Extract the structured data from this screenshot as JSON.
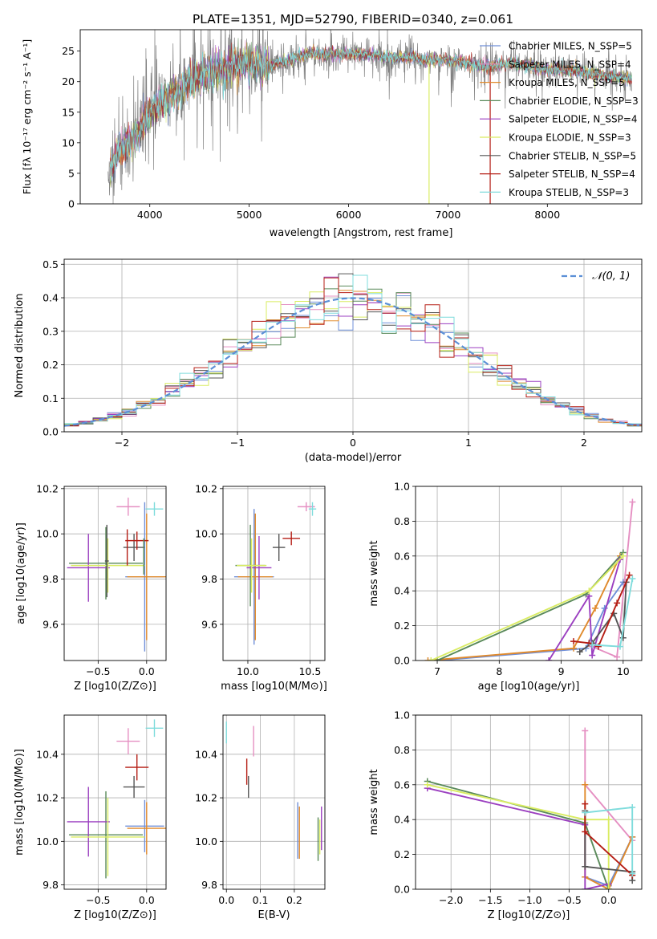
{
  "figure_title": "PLATE=1351, MJD=52790, FIBERID=0340, z=0.061",
  "colors": {
    "Chabrier MILES": "#6f8fd8",
    "Salpeter MILES": "#e58fc2",
    "Kroupa MILES": "#e08a2c",
    "Chabrier ELODIE": "#5a8a5a",
    "Salpeter ELODIE": "#9b3fc0",
    "Kroupa ELODIE": "#d9ec62",
    "Chabrier STELIB": "#555555",
    "Salpeter STELIB": "#b51d14",
    "Kroupa STELIB": "#7fdcdc",
    "data": "#808080",
    "normal": "#5b8fd6",
    "grid": "#b0b0b0"
  },
  "chart_data": [
    {
      "id": "spectrum",
      "type": "line",
      "title": "PLATE=1351, MJD=52790, FIBERID=0340, z=0.061",
      "xlabel": "wavelength [Angstrom, rest frame]",
      "ylabel": "Flux [fλ 10⁻¹⁷ erg cm⁻² s⁻¹ A⁻¹]",
      "xlim": [
        3300,
        8950
      ],
      "ylim": [
        0,
        28.5
      ],
      "xticks": [
        4000,
        5000,
        6000,
        7000,
        8000
      ],
      "yticks": [
        0,
        5,
        10,
        15,
        20,
        25
      ],
      "grid": false,
      "legend_position": "top-right",
      "legend": [
        "Chabrier MILES, N_SSP=5",
        "Salpeter MILES, N_SSP=4",
        "Kroupa MILES, N_SSP=5",
        "Chabrier ELODIE, N_SSP=3",
        "Salpeter ELODIE, N_SSP=4",
        "Kroupa ELODIE, N_SSP=3",
        "Chabrier STELIB, N_SSP=5",
        "Salpeter STELIB, N_SSP=4",
        "Kroupa STELIB, N_SSP=3"
      ],
      "continuum": {
        "x": [
          3600,
          3650,
          3700,
          3750,
          3800,
          3850,
          3900,
          3950,
          4000,
          4100,
          4200,
          4300,
          4400,
          4500,
          4600,
          4700,
          4800,
          4900,
          5000,
          5100,
          5200,
          5300,
          5400,
          5500,
          5600,
          5700,
          5800,
          5900,
          6000,
          6200,
          6400,
          6600,
          6800,
          7000,
          7200,
          7400,
          7600,
          7800,
          8000,
          8200,
          8400,
          8600,
          8800
        ],
        "y": [
          6,
          7.5,
          9,
          9.5,
          10,
          11,
          12,
          13.5,
          15,
          16.5,
          17.5,
          18.5,
          20,
          21,
          21.5,
          22,
          22.5,
          23,
          23,
          23,
          22.5,
          23,
          23.5,
          24,
          24.5,
          24.5,
          24.5,
          24.5,
          24.5,
          24.5,
          24,
          24,
          23.5,
          23.5,
          23,
          22.5,
          23,
          22.5,
          22,
          22,
          21.5,
          21,
          20.5
        ]
      },
      "dips": [
        {
          "x": 6810,
          "y": 0
        },
        {
          "x": 7425,
          "y": 0
        }
      ]
    },
    {
      "id": "residuals",
      "type": "histogram",
      "xlabel": "(data-model)/error",
      "ylabel": "Normed distribution",
      "xlim": [
        -2.5,
        2.5
      ],
      "ylim": [
        0,
        0.515
      ],
      "xticks": [
        -2,
        -1,
        0,
        1,
        2
      ],
      "yticks": [
        0.0,
        0.1,
        0.2,
        0.3,
        0.4,
        0.5
      ],
      "grid": true,
      "legend_position": "top-right",
      "legend": [
        "N(0,1)"
      ],
      "bin_width": 0.125
    },
    {
      "id": "age_vs_Z",
      "type": "scatter",
      "xlabel": "Z [log10(Z/Z⊙)]",
      "ylabel": "age [log10(age/yr)]",
      "xlim": [
        -0.85,
        0.2
      ],
      "ylim": [
        9.44,
        10.21
      ],
      "xticks": [
        -0.5,
        0.0
      ],
      "yticks": [
        9.6,
        9.8,
        10.0,
        10.2
      ],
      "grid": true,
      "points": [
        {
          "s": "Chabrier MILES",
          "x": -0.02,
          "xerr": 0.2,
          "y": 9.81,
          "yerr": 0.33
        },
        {
          "s": "Salpeter MILES",
          "x": -0.19,
          "xerr": 0.12,
          "y": 10.12,
          "yerr": 0.04
        },
        {
          "s": "Kroupa MILES",
          "x": 0.0,
          "xerr": 0.2,
          "y": 9.81,
          "yerr": 0.28
        },
        {
          "s": "Chabrier ELODIE",
          "x": -0.42,
          "xerr": 0.38,
          "y": 9.87,
          "yerr": 0.16
        },
        {
          "s": "Salpeter ELODIE",
          "x": -0.6,
          "xerr": 0.22,
          "y": 9.85,
          "yerr": 0.15
        },
        {
          "s": "Kroupa ELODIE",
          "x": -0.4,
          "xerr": 0.38,
          "y": 9.86,
          "yerr": 0.12
        },
        {
          "s": "Chabrier STELIB",
          "x": -0.13,
          "xerr": 0.11,
          "y": 9.94,
          "yerr": 0.06
        },
        {
          "s": "Salpeter STELIB",
          "x": -0.1,
          "xerr": 0.12,
          "y": 9.97,
          "yerr": 0.04
        },
        {
          "s": "Kroupa STELIB",
          "x": 0.08,
          "xerr": 0.09,
          "y": 10.11,
          "yerr": 0.03
        },
        {
          "s": "Chabrier STELIB",
          "x": -0.41,
          "xerr": 0.02,
          "y": 9.88,
          "yerr": 0.16
        },
        {
          "s": "Salpeter STELIB",
          "x": -0.2,
          "xerr": 0.0,
          "y": 9.94,
          "yerr": 0.08
        },
        {
          "s": "Chabrier ELODIE",
          "x": -0.03,
          "xerr": 0.0,
          "y": 9.9,
          "yerr": 0.08
        }
      ]
    },
    {
      "id": "age_vs_mass",
      "type": "scatter",
      "xlabel": "mass [log10(M/M⊙)]",
      "ylabel": "",
      "xlim": [
        9.8,
        10.62
      ],
      "ylim": [
        9.44,
        10.21
      ],
      "xticks": [
        10.0,
        10.5
      ],
      "yticks": [
        9.6,
        9.8,
        10.0,
        10.2
      ],
      "grid": true,
      "points": [
        {
          "s": "Chabrier MILES",
          "x": 10.05,
          "xerr": 0.16,
          "y": 9.81,
          "yerr": 0.3
        },
        {
          "s": "Salpeter MILES",
          "x": 10.47,
          "xerr": 0.07,
          "y": 10.12,
          "yerr": 0.02
        },
        {
          "s": "Kroupa MILES",
          "x": 10.06,
          "xerr": 0.14,
          "y": 9.81,
          "yerr": 0.28
        },
        {
          "s": "Chabrier ELODIE",
          "x": 10.02,
          "xerr": 0.12,
          "y": 9.86,
          "yerr": 0.18
        },
        {
          "s": "Salpeter ELODIE",
          "x": 10.09,
          "xerr": 0.1,
          "y": 9.85,
          "yerr": 0.14
        },
        {
          "s": "Kroupa ELODIE",
          "x": 10.03,
          "xerr": 0.12,
          "y": 9.86,
          "yerr": 0.12
        },
        {
          "s": "Chabrier STELIB",
          "x": 10.25,
          "xerr": 0.05,
          "y": 9.94,
          "yerr": 0.06
        },
        {
          "s": "Salpeter STELIB",
          "x": 10.35,
          "xerr": 0.07,
          "y": 9.98,
          "yerr": 0.03
        },
        {
          "s": "Kroupa STELIB",
          "x": 10.52,
          "xerr": 0.03,
          "y": 10.11,
          "yerr": 0.03
        }
      ]
    },
    {
      "id": "weight_vs_age",
      "type": "line",
      "xlabel": "age [log10(age/yr)]",
      "ylabel": "mass weight",
      "xlim": [
        6.65,
        10.3
      ],
      "ylim": [
        0,
        1.0
      ],
      "xticks": [
        7,
        8,
        9,
        10
      ],
      "yticks": [
        0.0,
        0.2,
        0.4,
        0.6,
        0.8,
        1.0
      ],
      "grid": true,
      "series": [
        {
          "s": "Chabrier MILES",
          "x": [
            7.0,
            9.4,
            9.7,
            10.0
          ],
          "y": [
            0.0,
            0.07,
            0.3,
            0.45
          ]
        },
        {
          "s": "Salpeter MILES",
          "x": [
            9.5,
            9.9,
            10.15
          ],
          "y": [
            0.08,
            0.02,
            0.91
          ]
        },
        {
          "s": "Kroupa MILES",
          "x": [
            6.85,
            9.2,
            9.55,
            9.95
          ],
          "y": [
            0.0,
            0.07,
            0.3,
            0.6
          ]
        },
        {
          "s": "Chabrier ELODIE",
          "x": [
            7.0,
            9.4,
            10.0
          ],
          "y": [
            0.0,
            0.38,
            0.62
          ]
        },
        {
          "s": "Salpeter ELODIE",
          "x": [
            8.8,
            9.45,
            9.5,
            9.95
          ],
          "y": [
            0.0,
            0.37,
            0.03,
            0.58
          ]
        },
        {
          "s": "Kroupa ELODIE",
          "x": [
            6.9,
            9.45,
            10.0
          ],
          "y": [
            0.0,
            0.4,
            0.6
          ]
        },
        {
          "s": "Chabrier STELIB",
          "x": [
            9.3,
            9.5,
            9.85,
            10.0,
            10.05
          ],
          "y": [
            0.05,
            0.1,
            0.27,
            0.13,
            0.45
          ]
        },
        {
          "s": "Salpeter STELIB",
          "x": [
            9.2,
            9.45,
            9.6,
            9.9,
            10.1
          ],
          "y": [
            0.11,
            0.1,
            0.08,
            0.33,
            0.49
          ]
        },
        {
          "s": "Kroupa STELIB",
          "x": [
            9.5,
            9.95,
            10.15
          ],
          "y": [
            0.09,
            0.08,
            0.47
          ]
        }
      ]
    },
    {
      "id": "mass_vs_Z",
      "type": "scatter",
      "xlabel": "Z [log10(Z/Z⊙)]",
      "ylabel": "mass [log10(M/M⊙)]",
      "xlim": [
        -0.85,
        0.2
      ],
      "ylim": [
        9.78,
        10.58
      ],
      "xticks": [
        -0.5,
        0.0
      ],
      "yticks": [
        9.8,
        10.0,
        10.2,
        10.4
      ],
      "grid": true,
      "points": [
        {
          "s": "Chabrier MILES",
          "x": -0.02,
          "xerr": 0.2,
          "y": 10.07,
          "yerr": 0.12
        },
        {
          "s": "Salpeter MILES",
          "x": -0.19,
          "xerr": 0.12,
          "y": 10.46,
          "yerr": 0.06
        },
        {
          "s": "Kroupa MILES",
          "x": 0.0,
          "xerr": 0.2,
          "y": 10.06,
          "yerr": 0.12
        },
        {
          "s": "Chabrier ELODIE",
          "x": -0.42,
          "xerr": 0.38,
          "y": 10.03,
          "yerr": 0.2
        },
        {
          "s": "Salpeter ELODIE",
          "x": -0.6,
          "xerr": 0.22,
          "y": 10.09,
          "yerr": 0.16
        },
        {
          "s": "Kroupa ELODIE",
          "x": -0.4,
          "xerr": 0.38,
          "y": 10.02,
          "yerr": 0.18
        },
        {
          "s": "Chabrier STELIB",
          "x": -0.13,
          "xerr": 0.11,
          "y": 10.25,
          "yerr": 0.05
        },
        {
          "s": "Salpeter STELIB",
          "x": -0.1,
          "xerr": 0.12,
          "y": 10.34,
          "yerr": 0.06
        },
        {
          "s": "Kroupa STELIB",
          "x": 0.08,
          "xerr": 0.09,
          "y": 10.52,
          "yerr": 0.04
        }
      ]
    },
    {
      "id": "mass_vs_ebv",
      "type": "scatter",
      "xlabel": "E(B-V)",
      "ylabel": "",
      "xlim": [
        -0.01,
        0.29
      ],
      "ylim": [
        9.78,
        10.58
      ],
      "xticks": [
        0.0,
        0.1,
        0.2
      ],
      "yticks": [
        9.8,
        10.0,
        10.2,
        10.4
      ],
      "grid": true,
      "points": [
        {
          "s": "Chabrier MILES",
          "x": 0.21,
          "xerr": 0,
          "y": 10.05,
          "yerr": 0.13
        },
        {
          "s": "Salpeter MILES",
          "x": 0.08,
          "xerr": 0,
          "y": 10.46,
          "yerr": 0.07
        },
        {
          "s": "Kroupa MILES",
          "x": 0.215,
          "xerr": 0,
          "y": 10.04,
          "yerr": 0.12
        },
        {
          "s": "Chabrier ELODIE",
          "x": 0.27,
          "xerr": 0,
          "y": 10.01,
          "yerr": 0.1
        },
        {
          "s": "Salpeter ELODIE",
          "x": 0.28,
          "xerr": 0,
          "y": 10.06,
          "yerr": 0.1
        },
        {
          "s": "Kroupa ELODIE",
          "x": 0.275,
          "xerr": 0,
          "y": 10.02,
          "yerr": 0.08
        },
        {
          "s": "Chabrier STELIB",
          "x": 0.065,
          "xerr": 0,
          "y": 10.25,
          "yerr": 0.05
        },
        {
          "s": "Salpeter STELIB",
          "x": 0.06,
          "xerr": 0,
          "y": 10.32,
          "yerr": 0.06
        },
        {
          "s": "Kroupa STELIB",
          "x": 0.0,
          "xerr": 0,
          "y": 10.5,
          "yerr": 0.05
        }
      ]
    },
    {
      "id": "weight_vs_Z",
      "type": "line",
      "xlabel": "Z [log10(Z/Z⊙)]",
      "ylabel": "mass weight",
      "xlim": [
        -2.45,
        0.42
      ],
      "ylim": [
        0,
        1.0
      ],
      "xticks": [
        -2.0,
        -1.5,
        -1.0,
        -0.5,
        0.0
      ],
      "yticks": [
        0.0,
        0.2,
        0.4,
        0.6,
        0.8,
        1.0
      ],
      "grid": true,
      "series": [
        {
          "s": "Chabrier MILES",
          "x": [
            -0.3,
            0.0,
            0.3
          ],
          "y": [
            0.07,
            0.02,
            0.3
          ]
        },
        {
          "s": "Salpeter MILES",
          "x": [
            -0.3,
            -0.3,
            0.3
          ],
          "y": [
            0.91,
            0.6,
            0.28
          ]
        },
        {
          "s": "Kroupa MILES",
          "x": [
            -0.3,
            -0.3,
            0.0,
            0.3
          ],
          "y": [
            0.6,
            0.07,
            0.0,
            0.3
          ]
        },
        {
          "s": "Chabrier ELODIE",
          "x": [
            -2.3,
            -0.3,
            0.0
          ],
          "y": [
            0.62,
            0.38,
            0.0
          ]
        },
        {
          "s": "Salpeter ELODIE",
          "x": [
            -2.3,
            -0.3,
            -0.3,
            0.0
          ],
          "y": [
            0.58,
            0.37,
            0.0,
            0.03
          ]
        },
        {
          "s": "Kroupa ELODIE",
          "x": [
            -2.3,
            -0.3,
            0.0,
            0.0
          ],
          "y": [
            0.6,
            0.4,
            0.4,
            0.0
          ]
        },
        {
          "s": "Chabrier STELIB",
          "x": [
            -0.3,
            -0.3,
            0.3,
            0.3
          ],
          "y": [
            0.45,
            0.13,
            0.1,
            0.05
          ]
        },
        {
          "s": "Salpeter STELIB",
          "x": [
            -0.3,
            -0.3,
            0.3
          ],
          "y": [
            0.49,
            0.33,
            0.08
          ]
        },
        {
          "s": "Kroupa STELIB",
          "x": [
            -0.3,
            0.3,
            0.3
          ],
          "y": [
            0.44,
            0.47,
            0.09
          ]
        }
      ]
    }
  ]
}
